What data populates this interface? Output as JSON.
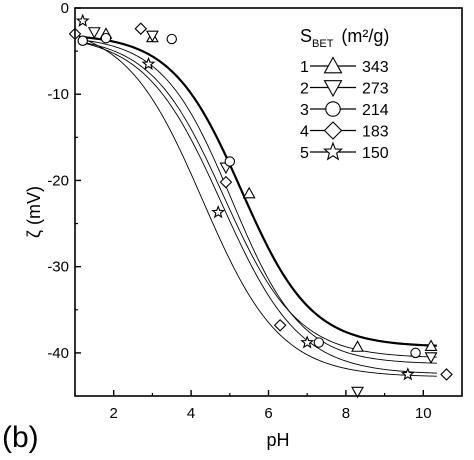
{
  "chart_data": {
    "type": "scatter",
    "panel_label": "(b)",
    "xlabel": "pH",
    "ylabel": "ζ (mV)",
    "xlim": [
      1,
      11
    ],
    "ylim": [
      -45,
      0
    ],
    "xticks": [
      2,
      4,
      6,
      8,
      10
    ],
    "yticks": [
      0,
      -10,
      -20,
      -30,
      -40
    ],
    "legend": {
      "placement": "top-right",
      "title_main": "S",
      "title_sub": "BET",
      "title_unit": "(m²/g)"
    },
    "series": [
      {
        "index": "1",
        "value_label": "343",
        "marker": "triangle-up",
        "points": [
          [
            1.8,
            -3.0
          ],
          [
            3.0,
            -3.4
          ],
          [
            5.5,
            -21.5
          ],
          [
            8.3,
            -39.3
          ],
          [
            10.2,
            -39.2
          ]
        ],
        "fit": {
          "top": -3.0,
          "bottom": -39.3,
          "center": 5.3,
          "width": 0.9
        }
      },
      {
        "index": "2",
        "value_label": "273",
        "marker": "triangle-down",
        "points": [
          [
            1.5,
            -2.8
          ],
          [
            3.0,
            -3.2
          ],
          [
            4.9,
            -18.5
          ],
          [
            8.3,
            -44.5
          ],
          [
            10.2,
            -40.5
          ]
        ],
        "fit": {
          "top": -3.2,
          "bottom": -41.3,
          "center": 5.05,
          "width": 0.9
        }
      },
      {
        "index": "3",
        "value_label": "214",
        "marker": "circle",
        "points": [
          [
            1.2,
            -3.8
          ],
          [
            1.8,
            -3.5
          ],
          [
            3.5,
            -3.6
          ],
          [
            5.0,
            -17.8
          ],
          [
            7.3,
            -38.8
          ],
          [
            9.8,
            -40.0
          ]
        ],
        "fit": {
          "top": -3.2,
          "bottom": -40.6,
          "center": 4.85,
          "width": 0.95
        }
      },
      {
        "index": "4",
        "value_label": "183",
        "marker": "diamond",
        "points": [
          [
            1.0,
            -3.0
          ],
          [
            2.7,
            -2.4
          ],
          [
            4.9,
            -20.2
          ],
          [
            6.3,
            -36.8
          ],
          [
            10.6,
            -42.5
          ]
        ],
        "fit": {
          "top": -3.0,
          "bottom": -42.5,
          "center": 4.8,
          "width": 1.0
        }
      },
      {
        "index": "5",
        "value_label": "150",
        "marker": "star",
        "points": [
          [
            1.2,
            -1.5
          ],
          [
            2.9,
            -6.5
          ],
          [
            4.7,
            -23.7
          ],
          [
            7.0,
            -38.8
          ],
          [
            9.6,
            -42.5
          ]
        ],
        "fit": {
          "top": -1.8,
          "bottom": -42.8,
          "center": 4.3,
          "width": 1.0
        }
      }
    ]
  }
}
